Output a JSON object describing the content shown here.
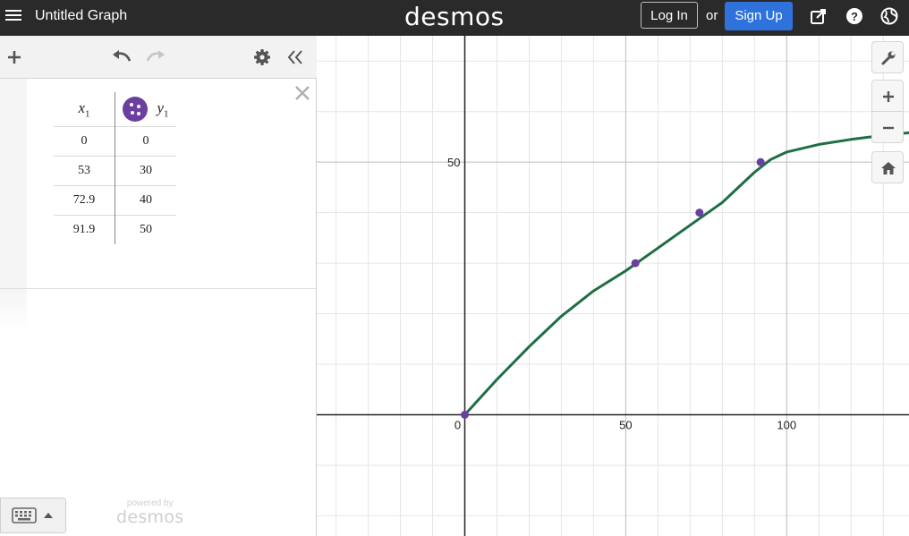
{
  "header": {
    "title": "Untitled Graph",
    "brand": "desmos",
    "login_label": "Log In",
    "or_label": "or",
    "signup_label": "Sign Up",
    "icons": [
      "hamburger-menu-icon",
      "share-icon",
      "help-icon",
      "language-globe-icon"
    ]
  },
  "toolbar": {
    "icons": [
      "add-icon",
      "undo-icon",
      "redo-icon",
      "settings-gear-icon",
      "collapse-panel-icon"
    ]
  },
  "table": {
    "col_x": "x",
    "col_x_sub": "1",
    "col_y": "y",
    "col_y_sub": "1",
    "rows": [
      [
        "0",
        "0"
      ],
      [
        "53",
        "30"
      ],
      [
        "72.9",
        "40"
      ],
      [
        "91.9",
        "50"
      ]
    ],
    "point_color": "#6b3fa0"
  },
  "footer": {
    "powered_by": "powered by",
    "brand": "desmos"
  },
  "graph_controls": {
    "icons": [
      "wrench-icon",
      "zoom-in-icon",
      "zoom-out-icon",
      "home-icon"
    ]
  },
  "chart_data": {
    "type": "scatter",
    "x_ticks": [
      "0",
      "50",
      "100"
    ],
    "y_ticks": [
      "50"
    ],
    "xlim": [
      -46,
      138
    ],
    "ylim": [
      -24,
      75
    ],
    "grid": true,
    "points": [
      {
        "x": 0,
        "y": 0
      },
      {
        "x": 53,
        "y": 30
      },
      {
        "x": 72.9,
        "y": 40
      },
      {
        "x": 91.9,
        "y": 50
      }
    ],
    "curve_color": "#1f6e43",
    "point_color": "#6b3fa0",
    "curve": {
      "x": [
        0,
        10,
        20,
        30,
        40,
        50,
        60,
        70,
        80,
        85,
        90,
        95,
        100,
        110,
        120,
        130,
        138
      ],
      "y": [
        0,
        7,
        13.5,
        19.5,
        24.5,
        28.5,
        33,
        37.5,
        42,
        45,
        48,
        50.5,
        52,
        53.5,
        54.5,
        55.3,
        55.8
      ]
    }
  }
}
